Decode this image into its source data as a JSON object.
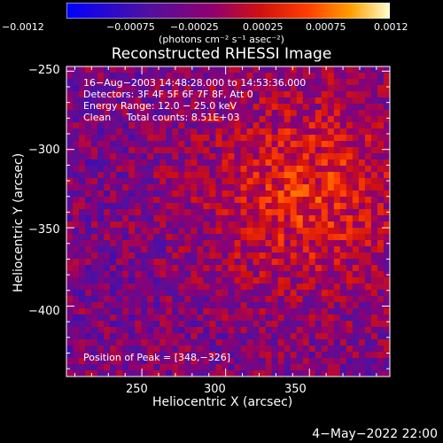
{
  "chart_data": {
    "type": "heatmap",
    "title": "Reconstructed RHESSI Image",
    "xlabel": "Heliocentric X (arcsec)",
    "ylabel": "Heliocentric Y (arcsec)",
    "xlim": [
      205,
      398
    ],
    "ylim": [
      -445,
      -247
    ],
    "xticks": [
      "250",
      "300",
      "350"
    ],
    "yticks": [
      "−250",
      "−300",
      "−350",
      "−400"
    ],
    "colorbar": {
      "range": [
        -0.0012,
        0.0012
      ],
      "ticks": [
        "−0.0012",
        "−0.00075",
        "−0.00025",
        "0.00025",
        "0.00075",
        "0.0012"
      ],
      "units": "(photons cm⁻² s⁻¹ asec⁻²)"
    },
    "annotations": {
      "time": "16−Aug−2003 14:48:28.000 to 14:53:36.000",
      "detectors": "Detectors: 3F 4F 5F 6F 7F 8F, Att 0",
      "energy": "Energy Range: 12.0 − 25.0 keV",
      "method": "Clean     Total counts: 8.51E+03",
      "peak": "Position of Peak = [348,−326]"
    },
    "peak_position": [
      348,
      -326
    ]
  },
  "footer": "4−May−2022 22:00",
  "colors": {
    "background": "#000000",
    "colormap": [
      "#0000ff",
      "#5010a0",
      "#800080",
      "#b01020",
      "#ff3000",
      "#ffa000",
      "#ffffb0"
    ]
  }
}
